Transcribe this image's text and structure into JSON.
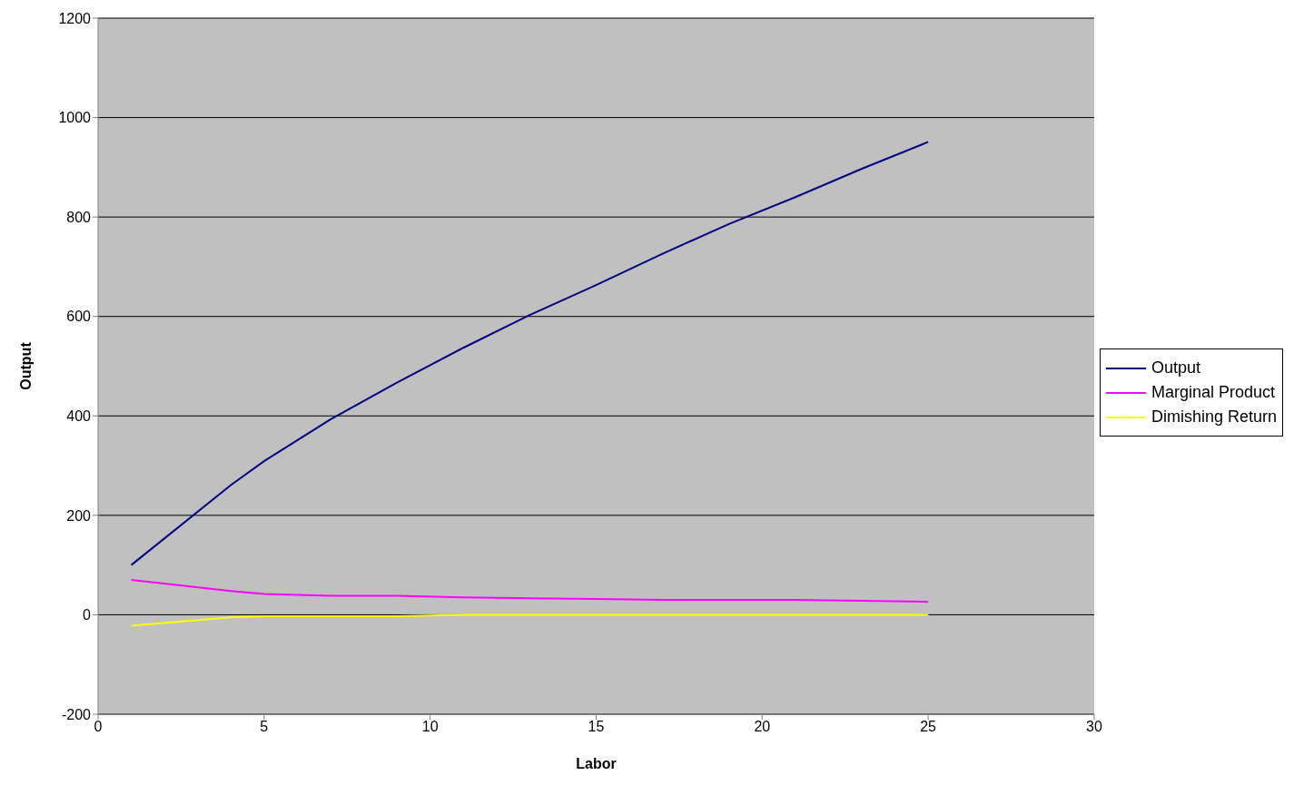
{
  "chart_data": {
    "type": "line",
    "xlabel": "Labor",
    "ylabel": "Output",
    "x": [
      1,
      4,
      5,
      7,
      9,
      11,
      13,
      15,
      17,
      19,
      21,
      23,
      25
    ],
    "series": [
      {
        "name": "Output",
        "color": "#000080",
        "values": [
          100,
          261,
          309,
          393,
          467,
          537,
          603,
          663,
          726,
          786,
          840,
          897,
          951
        ]
      },
      {
        "name": "Marginal Product",
        "color": "#ff00ff",
        "values": [
          70,
          48,
          42,
          38,
          38,
          35,
          33,
          32,
          30,
          30,
          30,
          28,
          26
        ]
      },
      {
        "name": "Dimishing Return",
        "color": "#ffff00",
        "values": [
          -22,
          -5,
          -3,
          -3,
          -3,
          0,
          0,
          0,
          0,
          0,
          0,
          0,
          0
        ]
      }
    ],
    "xlim": [
      0,
      30
    ],
    "xticks": [
      0,
      5,
      10,
      15,
      20,
      25,
      30
    ],
    "ylim": [
      -200,
      1200
    ],
    "yticks": [
      -200,
      0,
      200,
      400,
      600,
      800,
      1000,
      1200
    ],
    "grid": "y",
    "legend": "right",
    "marker": "none",
    "line_style": "solid"
  }
}
